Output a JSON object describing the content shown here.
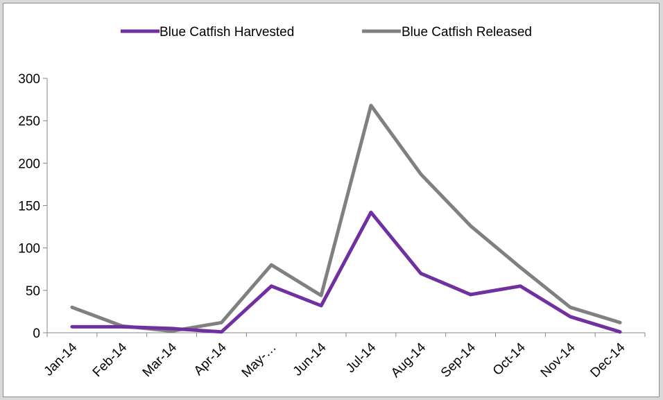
{
  "chart_data": {
    "type": "line",
    "title": "",
    "xlabel": "",
    "ylabel": "",
    "categories": [
      "Jan-14",
      "Feb-14",
      "Mar-14",
      "Apr-14",
      "May-…",
      "Jun-14",
      "Jul-14",
      "Aug-14",
      "Sep-14",
      "Oct-14",
      "Nov-14",
      "Dec-14"
    ],
    "ylim": [
      0,
      300
    ],
    "yticks": [
      0,
      50,
      100,
      150,
      200,
      250,
      300
    ],
    "grid": false,
    "legend_position": "top",
    "series": [
      {
        "name": "Blue Catfish Harvested",
        "color": "#7030a0",
        "values": [
          7,
          7,
          5,
          1,
          55,
          32,
          142,
          70,
          45,
          55,
          19,
          1
        ]
      },
      {
        "name": "Blue Catfish Released",
        "color": "#808080",
        "values": [
          30,
          8,
          2,
          12,
          80,
          44,
          268,
          187,
          126,
          77,
          30,
          12
        ]
      }
    ]
  }
}
